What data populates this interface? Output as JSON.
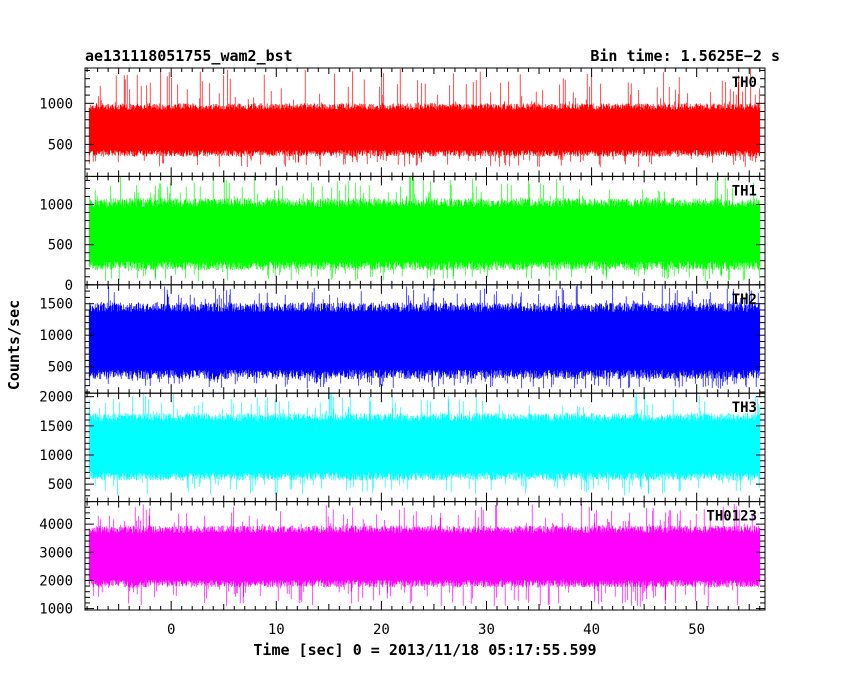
{
  "header": {
    "title": "ae131118051755_wam2_bst",
    "bin_time": "Bin time: 1.5625E−2 s"
  },
  "chart_data": {
    "type": "line",
    "title": "ae131118051755_wam2_bst",
    "subtitle": "Bin time: 1.5625E−2 s",
    "xlabel": "Time [sec] 0 = 2013/11/18 05:17:55.599",
    "ylabel": "Counts/sec",
    "xlim": [
      -8.2,
      56.5
    ],
    "xticks": [
      0,
      10,
      20,
      30,
      40,
      50
    ],
    "x_range_data": [
      -7.8,
      56.0
    ],
    "bin_time_s": 0.015625,
    "grid": false,
    "panels": [
      {
        "name": "TH0",
        "color": "#ff0000",
        "ylim": [
          110,
          1430
        ],
        "yticks": [
          500,
          1000
        ],
        "ytick_labels": [
          "500",
          "1000"
        ],
        "typical_low": 350,
        "typical_high": 1000,
        "min": 220,
        "max": 1430
      },
      {
        "name": "TH1",
        "color": "#00ff00",
        "ylim": [
          0,
          1350
        ],
        "yticks": [
          0,
          500,
          1000
        ],
        "ytick_labels": [
          "0",
          "500",
          "1000"
        ],
        "typical_low": 180,
        "typical_high": 1080,
        "min": 40,
        "max": 1350
      },
      {
        "name": "TH2",
        "color": "#0000ff",
        "ylim": [
          80,
          1800
        ],
        "yticks": [
          500,
          1000,
          1500
        ],
        "ytick_labels": [
          "500",
          "1000",
          "1500"
        ],
        "typical_low": 300,
        "typical_high": 1520,
        "min": 150,
        "max": 1800
      },
      {
        "name": "TH3",
        "color": "#00ffff",
        "ylim": [
          200,
          2060
        ],
        "yticks": [
          500,
          1000,
          1500,
          2000
        ],
        "ytick_labels": [
          "500",
          "1000",
          "1500",
          "2000"
        ],
        "typical_low": 560,
        "typical_high": 1720,
        "min": 300,
        "max": 2060
      },
      {
        "name": "TH0123",
        "color": "#ff00ff",
        "ylim": [
          950,
          4800
        ],
        "yticks": [
          1000,
          2000,
          3000,
          4000
        ],
        "ytick_labels": [
          "1000",
          "2000",
          "3000",
          "4000"
        ],
        "typical_low": 1750,
        "typical_high": 3950,
        "min": 1050,
        "max": 4750
      }
    ]
  }
}
